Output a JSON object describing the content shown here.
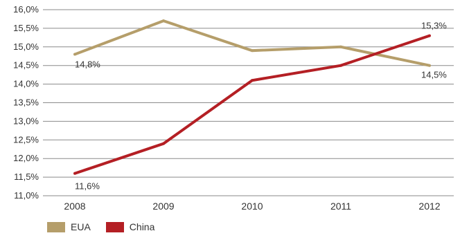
{
  "chart_data": {
    "type": "line",
    "x": [
      "2008",
      "2009",
      "2010",
      "2011",
      "2012"
    ],
    "series": [
      {
        "name": "EUA",
        "color": "#b59e6a",
        "values": [
          14.8,
          15.7,
          14.9,
          15.0,
          14.5
        ]
      },
      {
        "name": "China",
        "color": "#b41f24",
        "values": [
          11.6,
          12.4,
          14.1,
          14.5,
          15.3
        ]
      }
    ],
    "yticks": [
      "11,0%",
      "11,5%",
      "12,0%",
      "12,5%",
      "13,0%",
      "13,5%",
      "14,0%",
      "14,5%",
      "15,0%",
      "15,5%",
      "16,0%"
    ],
    "ylim": [
      11.0,
      16.0
    ],
    "grid": true,
    "legend_position": "bottom-left",
    "data_labels": [
      {
        "series": "EUA",
        "x": "2008",
        "text": "14,8%"
      },
      {
        "series": "EUA",
        "x": "2012",
        "text": "14,5%"
      },
      {
        "series": "China",
        "x": "2008",
        "text": "11,6%"
      },
      {
        "series": "China",
        "x": "2012",
        "text": "15,3%"
      }
    ]
  }
}
